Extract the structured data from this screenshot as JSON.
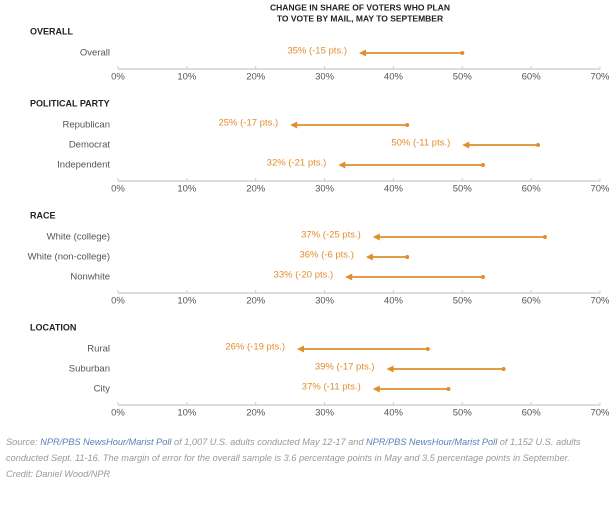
{
  "header": {
    "title": [
      "CHANGE IN SHARE OF VOTERS WHO PLAN",
      "TO VOTE BY MAIL, MAY TO SEPTEMBER"
    ]
  },
  "chart_data": [
    {
      "type": "dumbbell",
      "title": "OVERALL",
      "categories": [
        "Overall"
      ],
      "start": [
        50
      ],
      "end": [
        35
      ],
      "value_labels": [
        "35% (-15 pts.)"
      ],
      "color": "#e38d2c",
      "xlim": [
        0,
        70
      ],
      "xticks": [
        {
          "value": 0,
          "label": "0%"
        },
        {
          "value": 10,
          "label": "10%"
        },
        {
          "value": 20,
          "label": "20%"
        },
        {
          "value": 30,
          "label": "30%"
        },
        {
          "value": 40,
          "label": "40%"
        },
        {
          "value": 50,
          "label": "50%"
        },
        {
          "value": 60,
          "label": "60%"
        },
        {
          "value": 70,
          "label": "70%"
        }
      ]
    },
    {
      "type": "dumbbell",
      "title": "POLITICAL PARTY",
      "categories": [
        "Republican",
        "Democrat",
        "Independent"
      ],
      "start": [
        42,
        61,
        53
      ],
      "end": [
        25,
        50,
        32
      ],
      "value_labels": [
        "25% (-17 pts.)",
        "50% (-11 pts.)",
        "32% (-21 pts.)"
      ],
      "color": "#e38d2c",
      "xlim": [
        0,
        70
      ],
      "xticks": [
        {
          "value": 0,
          "label": "0%"
        },
        {
          "value": 10,
          "label": "10%"
        },
        {
          "value": 20,
          "label": "20%"
        },
        {
          "value": 30,
          "label": "30%"
        },
        {
          "value": 40,
          "label": "40%"
        },
        {
          "value": 50,
          "label": "50%"
        },
        {
          "value": 60,
          "label": "60%"
        },
        {
          "value": 70,
          "label": "70%"
        }
      ]
    },
    {
      "type": "dumbbell",
      "title": "RACE",
      "categories": [
        "White (college)",
        "White (non-college)",
        "Nonwhite"
      ],
      "start": [
        62,
        42,
        53
      ],
      "end": [
        37,
        36,
        33
      ],
      "value_labels": [
        "37% (-25 pts.)",
        "36% (-6 pts.)",
        "33% (-20 pts.)"
      ],
      "color": "#e38d2c",
      "xlim": [
        0,
        70
      ],
      "xticks": [
        {
          "value": 0,
          "label": "0%"
        },
        {
          "value": 10,
          "label": "10%"
        },
        {
          "value": 20,
          "label": "20%"
        },
        {
          "value": 30,
          "label": "30%"
        },
        {
          "value": 40,
          "label": "40%"
        },
        {
          "value": 50,
          "label": "50%"
        },
        {
          "value": 60,
          "label": "60%"
        },
        {
          "value": 70,
          "label": "70%"
        }
      ]
    },
    {
      "type": "dumbbell",
      "title": "LOCATION",
      "categories": [
        "Rural",
        "Suburban",
        "City"
      ],
      "start": [
        45,
        56,
        48
      ],
      "end": [
        26,
        39,
        37
      ],
      "value_labels": [
        "26% (-19 pts.)",
        "39% (-17 pts.)",
        "37% (-11 pts.)"
      ],
      "color": "#e38d2c",
      "xlim": [
        0,
        70
      ],
      "xticks": [
        {
          "value": 0,
          "label": "0%"
        },
        {
          "value": 10,
          "label": "10%"
        },
        {
          "value": 20,
          "label": "20%"
        },
        {
          "value": 30,
          "label": "30%"
        },
        {
          "value": 40,
          "label": "40%"
        },
        {
          "value": 50,
          "label": "50%"
        },
        {
          "value": 60,
          "label": "60%"
        },
        {
          "value": 70,
          "label": "70%"
        }
      ]
    }
  ],
  "source": {
    "parts": [
      {
        "text": "Source: "
      },
      {
        "text": "NPR/PBS NewsHour/Marist Poll",
        "link": true
      },
      {
        "text": " of 1,007 U.S. adults conducted May 12-17 and "
      },
      {
        "text": "NPR/PBS NewsHour/Marist Poll",
        "link": true
      },
      {
        "text": " of 1,152 U.S. adults conducted Sept. 11-16. The margin of error for the overall sample is 3.6 percentage points in May and 3.5 percentage points in September."
      }
    ],
    "credit": "Credit: Daniel Wood/NPR"
  }
}
